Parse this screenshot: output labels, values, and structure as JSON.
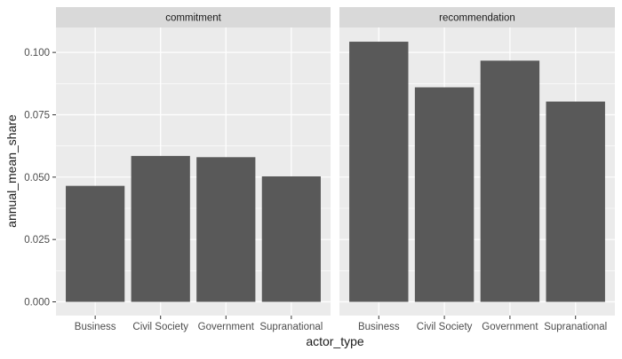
{
  "chart_data": {
    "type": "bar",
    "facet_by": "",
    "xlabel": "actor_type",
    "ylabel": "annual_mean_share",
    "ylim": [
      -0.0055,
      0.11
    ],
    "yticks": [
      0.0,
      0.025,
      0.05,
      0.075,
      0.1
    ],
    "ytick_labels": [
      "0.000",
      "0.025",
      "0.050",
      "0.075",
      "0.100"
    ],
    "categories": [
      "Business",
      "Civil Society",
      "Government",
      "Supranational"
    ],
    "grid": true,
    "legend": "none",
    "colors": {
      "bar": "#595959",
      "panel_bg": "#ebebeb",
      "grid_major": "#ffffff",
      "strip_bg": "#d9d9d9",
      "text": "#1a1a1a",
      "tick_text": "#4d4d4d"
    },
    "panels": [
      {
        "strip_label": "commitment",
        "values": [
          0.0465,
          0.0585,
          0.058,
          0.0503
        ]
      },
      {
        "strip_label": "recommendation",
        "values": [
          0.1043,
          0.086,
          0.0967,
          0.0803
        ]
      }
    ]
  }
}
